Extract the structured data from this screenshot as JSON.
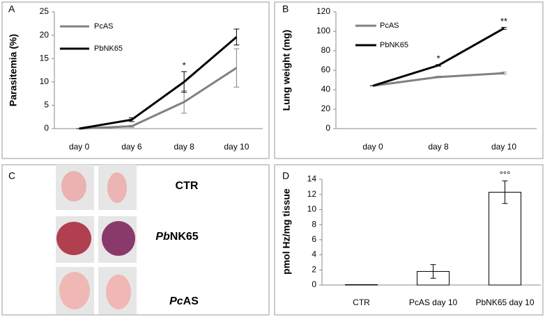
{
  "chart_data": [
    {
      "type": "line",
      "label": "A",
      "ylabel": "Parasitemia (%)",
      "categories": [
        "day 0",
        "day 6",
        "day 8",
        "day 10"
      ],
      "series": [
        {
          "name": "PcAS",
          "color": "#808080",
          "values": [
            0,
            0.5,
            5.7,
            13
          ],
          "errors": [
            0,
            0.2,
            2.4,
            4.1
          ]
        },
        {
          "name": "PbNK65",
          "color": "#000000",
          "values": [
            0,
            1.9,
            10,
            19.6
          ],
          "errors": [
            0,
            0.4,
            2.2,
            1.7
          ]
        }
      ],
      "significance": [
        null,
        null,
        "*",
        null
      ],
      "ylim": [
        0,
        25
      ],
      "yticks": [
        0,
        5,
        10,
        15,
        20,
        25
      ]
    },
    {
      "type": "line",
      "label": "B",
      "ylabel": "Lung weight (mg)",
      "categories": [
        "day 0",
        "day 8",
        "day 10"
      ],
      "series": [
        {
          "name": "PcAS",
          "color": "#808080",
          "values": [
            44,
            53,
            57
          ],
          "errors": [
            0,
            0.8,
            1
          ]
        },
        {
          "name": "PbNK65",
          "color": "#000000",
          "values": [
            44,
            65,
            103
          ],
          "errors": [
            0,
            0.8,
            1
          ]
        }
      ],
      "significance": [
        null,
        "*",
        "**"
      ],
      "ylim": [
        0,
        120
      ],
      "yticks": [
        0,
        20,
        40,
        60,
        80,
        100,
        120
      ]
    },
    {
      "type": "bar",
      "label": "D",
      "ylabel": "pmol Hz/mg tissue",
      "categories": [
        "CTR",
        "PcAS day 10",
        "PbNK65 day 10"
      ],
      "values": [
        0.05,
        1.8,
        12.3
      ],
      "errors": [
        0,
        0.9,
        1.5
      ],
      "color": "#ffffff",
      "significance": [
        null,
        null,
        "°°°"
      ],
      "ylim": [
        0,
        14
      ],
      "yticks": [
        0,
        2,
        4,
        6,
        8,
        10,
        12,
        14
      ]
    }
  ],
  "panel_c": {
    "label": "C",
    "rows": [
      [
        "CTR"
      ],
      [
        "Pb",
        "NK65"
      ],
      [
        "Pc",
        "AS"
      ]
    ]
  }
}
